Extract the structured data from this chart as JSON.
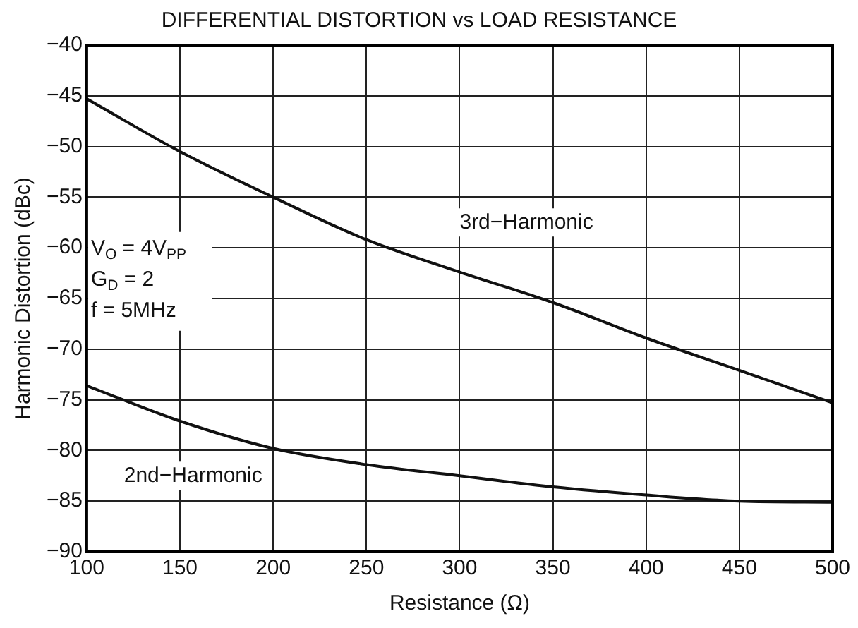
{
  "chart_data": {
    "type": "line",
    "title": "DIFFERENTIAL DISTORTION vs LOAD RESISTANCE",
    "xlabel": "Resistance (Ω)",
    "ylabel": "Harmonic Distortion (dBc)",
    "x": [
      100,
      150,
      200,
      250,
      300,
      350,
      400,
      450,
      500
    ],
    "series": [
      {
        "name": "3rd−Harmonic",
        "color": "#111111",
        "values": [
          -45.3,
          -50.5,
          -55,
          -59.2,
          -62.4,
          -65.4,
          -68.9,
          -72.1,
          -75.3
        ]
      },
      {
        "name": "2nd−Harmonic",
        "color": "#111111",
        "values": [
          -73.6,
          -77.1,
          -79.8,
          -81.4,
          -82.5,
          -83.6,
          -84.4,
          -85,
          -85.1
        ]
      }
    ],
    "xlim": [
      100,
      500
    ],
    "xticks": [
      100,
      150,
      200,
      250,
      300,
      350,
      400,
      450,
      500
    ],
    "ylim": [
      -90,
      -40
    ],
    "yticks": [
      {
        "value": -90,
        "label": "−90"
      },
      {
        "value": -85,
        "label": "−85"
      },
      {
        "value": -80,
        "label": "−80"
      },
      {
        "value": -75,
        "label": "−75"
      },
      {
        "value": -70,
        "label": "−70"
      },
      {
        "value": -65,
        "label": "−65"
      },
      {
        "value": -60,
        "label": "−60"
      },
      {
        "value": -55,
        "label": "−55"
      },
      {
        "value": -50,
        "label": "−50"
      },
      {
        "value": -45,
        "label": "−45"
      },
      {
        "value": -40,
        "label": "−40"
      }
    ],
    "annotations": [
      "V$_{O}$ = 4V$_{PP}$",
      "G$_{D}$ = 2",
      "f = 5MHz"
    ],
    "grid": true,
    "legend": false,
    "marker": "none",
    "line_style": "solid"
  }
}
